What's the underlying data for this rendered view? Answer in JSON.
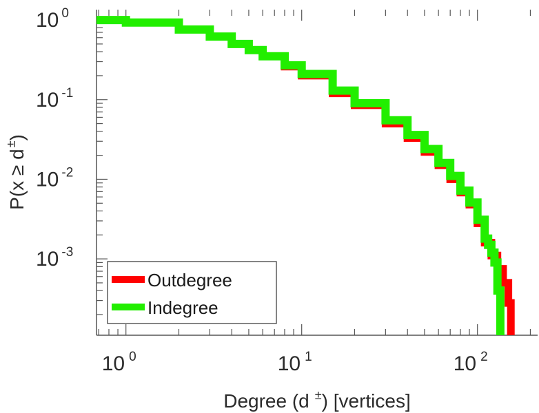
{
  "chart_data": {
    "type": "line",
    "xscale": "log",
    "yscale": "log",
    "xlim": [
      0.68,
      220
    ],
    "ylim": [
      0.00011,
      1.35
    ],
    "x_ticks": [
      {
        "value": 1,
        "base": "10",
        "exp": "0"
      },
      {
        "value": 10,
        "base": "10",
        "exp": "1"
      },
      {
        "value": 100,
        "base": "10",
        "exp": "2"
      }
    ],
    "y_ticks": [
      {
        "value": 1,
        "base": "10",
        "exp": "0"
      },
      {
        "value": 0.1,
        "base": "10",
        "exp": "-1"
      },
      {
        "value": 0.01,
        "base": "10",
        "exp": "-2"
      },
      {
        "value": 0.001,
        "base": "10",
        "exp": "-3"
      }
    ],
    "xlabel": {
      "prefix": "Degree (d",
      "sup": "±",
      "suffix": ") [vertices]"
    },
    "ylabel": {
      "prefix": "P(x ≥ d",
      "sup": "±",
      "suffix": ")"
    },
    "legend_position": "bottom-left",
    "grid": false,
    "series": [
      {
        "name": "Outdegree",
        "color": "#ff0000",
        "x": [
          0.68,
          1,
          2,
          3,
          4,
          5,
          6,
          8,
          10,
          15,
          20,
          30,
          40,
          50,
          60,
          70,
          80,
          90,
          100,
          110,
          120,
          130,
          140,
          150,
          155
        ],
        "y": [
          1.0,
          0.93,
          0.76,
          0.62,
          0.5,
          0.42,
          0.35,
          0.26,
          0.2,
          0.12,
          0.085,
          0.05,
          0.033,
          0.022,
          0.015,
          0.01,
          0.0068,
          0.0048,
          0.0028,
          0.0016,
          0.0011,
          0.00075,
          0.0005,
          0.00028,
          0.00011
        ]
      },
      {
        "name": "Indegree",
        "color": "#22ee00",
        "x": [
          0.68,
          1,
          2,
          3,
          4,
          5,
          6,
          8,
          10,
          15,
          20,
          30,
          40,
          50,
          60,
          70,
          80,
          90,
          100,
          110,
          115,
          120,
          125,
          130,
          135
        ],
        "y": [
          1.0,
          0.93,
          0.76,
          0.62,
          0.5,
          0.42,
          0.35,
          0.27,
          0.21,
          0.13,
          0.09,
          0.055,
          0.036,
          0.024,
          0.016,
          0.011,
          0.0072,
          0.0051,
          0.0031,
          0.0018,
          0.0015,
          0.0012,
          0.0009,
          0.0004,
          0.00011
        ]
      }
    ]
  }
}
